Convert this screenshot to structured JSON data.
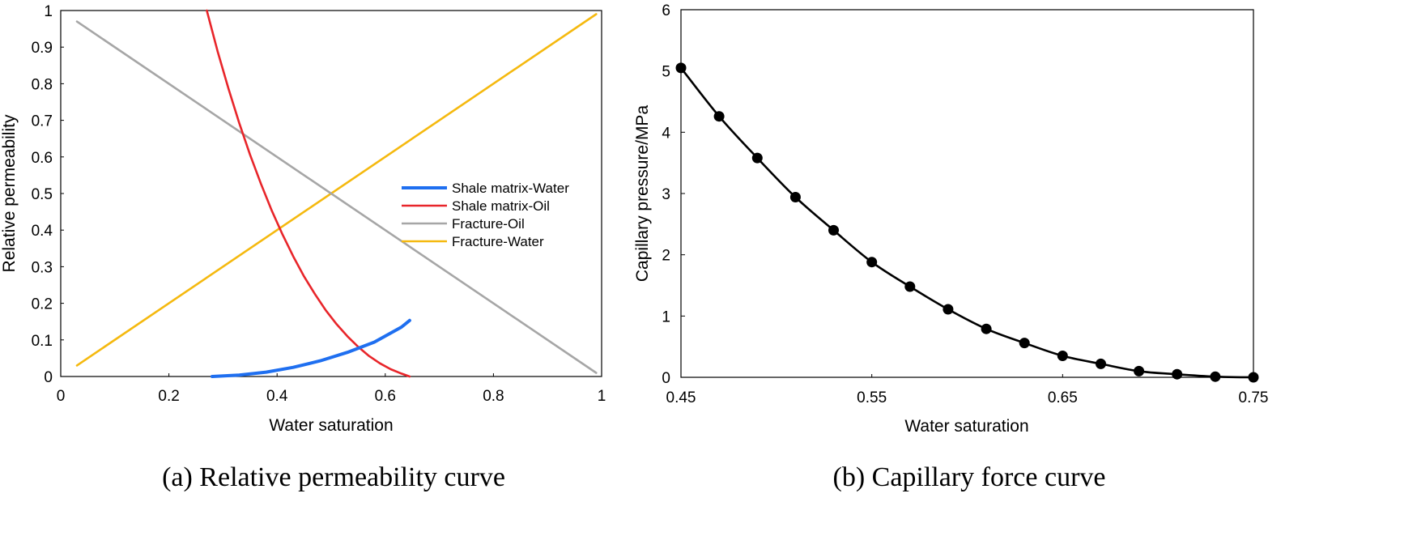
{
  "chart_data": [
    {
      "type": "line",
      "xlabel": "Water saturation",
      "ylabel": "Relative permeability",
      "caption": "(a) Relative permeability curve",
      "xlim": [
        0,
        1
      ],
      "ylim": [
        0,
        1
      ],
      "xticks": [
        "0",
        "0.2",
        "0.4",
        "0.6",
        "0.8",
        "1"
      ],
      "yticks": [
        "0",
        "0.1",
        "0.2",
        "0.3",
        "0.4",
        "0.5",
        "0.6",
        "0.7",
        "0.8",
        "0.9",
        "1"
      ],
      "legend_position": "right",
      "series": [
        {
          "name": "Shale matrix-Water",
          "color": "#1f6ff0",
          "x": [
            0.28,
            0.33,
            0.38,
            0.43,
            0.48,
            0.53,
            0.58,
            0.63,
            0.645
          ],
          "y": [
            0.0,
            0.004,
            0.012,
            0.025,
            0.043,
            0.066,
            0.094,
            0.135,
            0.153
          ]
        },
        {
          "name": "Shale matrix-Oil",
          "color": "#e8252a",
          "x": [
            0.27,
            0.29,
            0.31,
            0.33,
            0.35,
            0.37,
            0.39,
            0.41,
            0.43,
            0.45,
            0.47,
            0.49,
            0.51,
            0.53,
            0.55,
            0.57,
            0.59,
            0.61,
            0.63,
            0.645
          ],
          "y": [
            1.0,
            0.889,
            0.787,
            0.693,
            0.606,
            0.527,
            0.454,
            0.388,
            0.328,
            0.273,
            0.225,
            0.181,
            0.143,
            0.11,
            0.081,
            0.056,
            0.036,
            0.02,
            0.008,
            0.0
          ]
        },
        {
          "name": "Fracture-Oil",
          "color": "#a6a6a6",
          "x": [
            0.03,
            0.99
          ],
          "y": [
            0.97,
            0.01
          ]
        },
        {
          "name": "Fracture-Water",
          "color": "#f5b90f",
          "x": [
            0.03,
            0.99
          ],
          "y": [
            0.03,
            0.99
          ]
        }
      ]
    },
    {
      "type": "line",
      "xlabel": "Water saturation",
      "ylabel": "Capillary pressure/MPa",
      "caption": "(b) Capillary force curve",
      "xlim": [
        0.45,
        0.75
      ],
      "ylim": [
        0,
        6
      ],
      "xticks": [
        "0.45",
        "0.55",
        "0.65",
        "0.75"
      ],
      "yticks": [
        "0",
        "1",
        "2",
        "3",
        "4",
        "5",
        "6"
      ],
      "series": [
        {
          "color": "#000000",
          "markers": true,
          "x": [
            0.45,
            0.47,
            0.49,
            0.51,
            0.53,
            0.55,
            0.57,
            0.59,
            0.61,
            0.63,
            0.65,
            0.67,
            0.69,
            0.71,
            0.73,
            0.75
          ],
          "y": [
            5.05,
            4.26,
            3.58,
            2.94,
            2.4,
            1.88,
            1.48,
            1.11,
            0.79,
            0.56,
            0.35,
            0.22,
            0.1,
            0.05,
            0.01,
            0.0
          ]
        }
      ]
    }
  ]
}
